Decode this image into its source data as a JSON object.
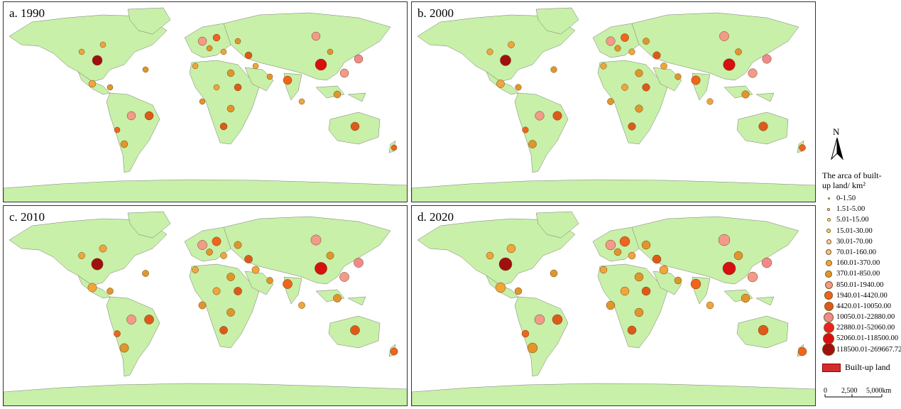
{
  "panels": [
    {
      "id": "a",
      "title": "a. 1990"
    },
    {
      "id": "b",
      "title": "b. 2000"
    },
    {
      "id": "c",
      "title": "c. 2010"
    },
    {
      "id": "d",
      "title": "d. 2020"
    }
  ],
  "north_arrow": {
    "label": "N"
  },
  "legend": {
    "title_line1": "The arca of built-",
    "title_line2": "up land/ km²",
    "items": [
      {
        "label": "0-1.50",
        "color": "#fff7e0"
      },
      {
        "label": "1.51-5.00",
        "color": "#fff1c0"
      },
      {
        "label": "5.01-15.00",
        "color": "#ffe680"
      },
      {
        "label": "15.01-30.00",
        "color": "#ffd84a"
      },
      {
        "label": "30.01-70.00",
        "color": "#ffcfa0"
      },
      {
        "label": "70.01-160.00",
        "color": "#f9c089"
      },
      {
        "label": "160.01-370.00",
        "color": "#f0a53c"
      },
      {
        "label": "370.01-850.00",
        "color": "#e0962c"
      },
      {
        "label": "850.01-1940.00",
        "color": "#f39a8a"
      },
      {
        "label": "1940.01-4420.00",
        "color": "#f0641e"
      },
      {
        "label": "4420.01-10050.00",
        "color": "#de5a1a"
      },
      {
        "label": "10050.01-22880.00",
        "color": "#f08a8a"
      },
      {
        "label": "22880.01-52060.00",
        "color": "#ee2020"
      },
      {
        "label": "52060.01-118500.00",
        "color": "#d81010"
      },
      {
        "label": "118500.01-269667.72",
        "color": "#a01010"
      }
    ],
    "builtup_label": "Built-up land",
    "builtup_color": "#d32c2c"
  },
  "scale": {
    "ticks": [
      "0",
      "2,500",
      "5,000km"
    ]
  },
  "colors": {
    "land": "#c8f0a8",
    "ocean": "#ffffff",
    "land_outline": "#7a7a7a"
  }
}
